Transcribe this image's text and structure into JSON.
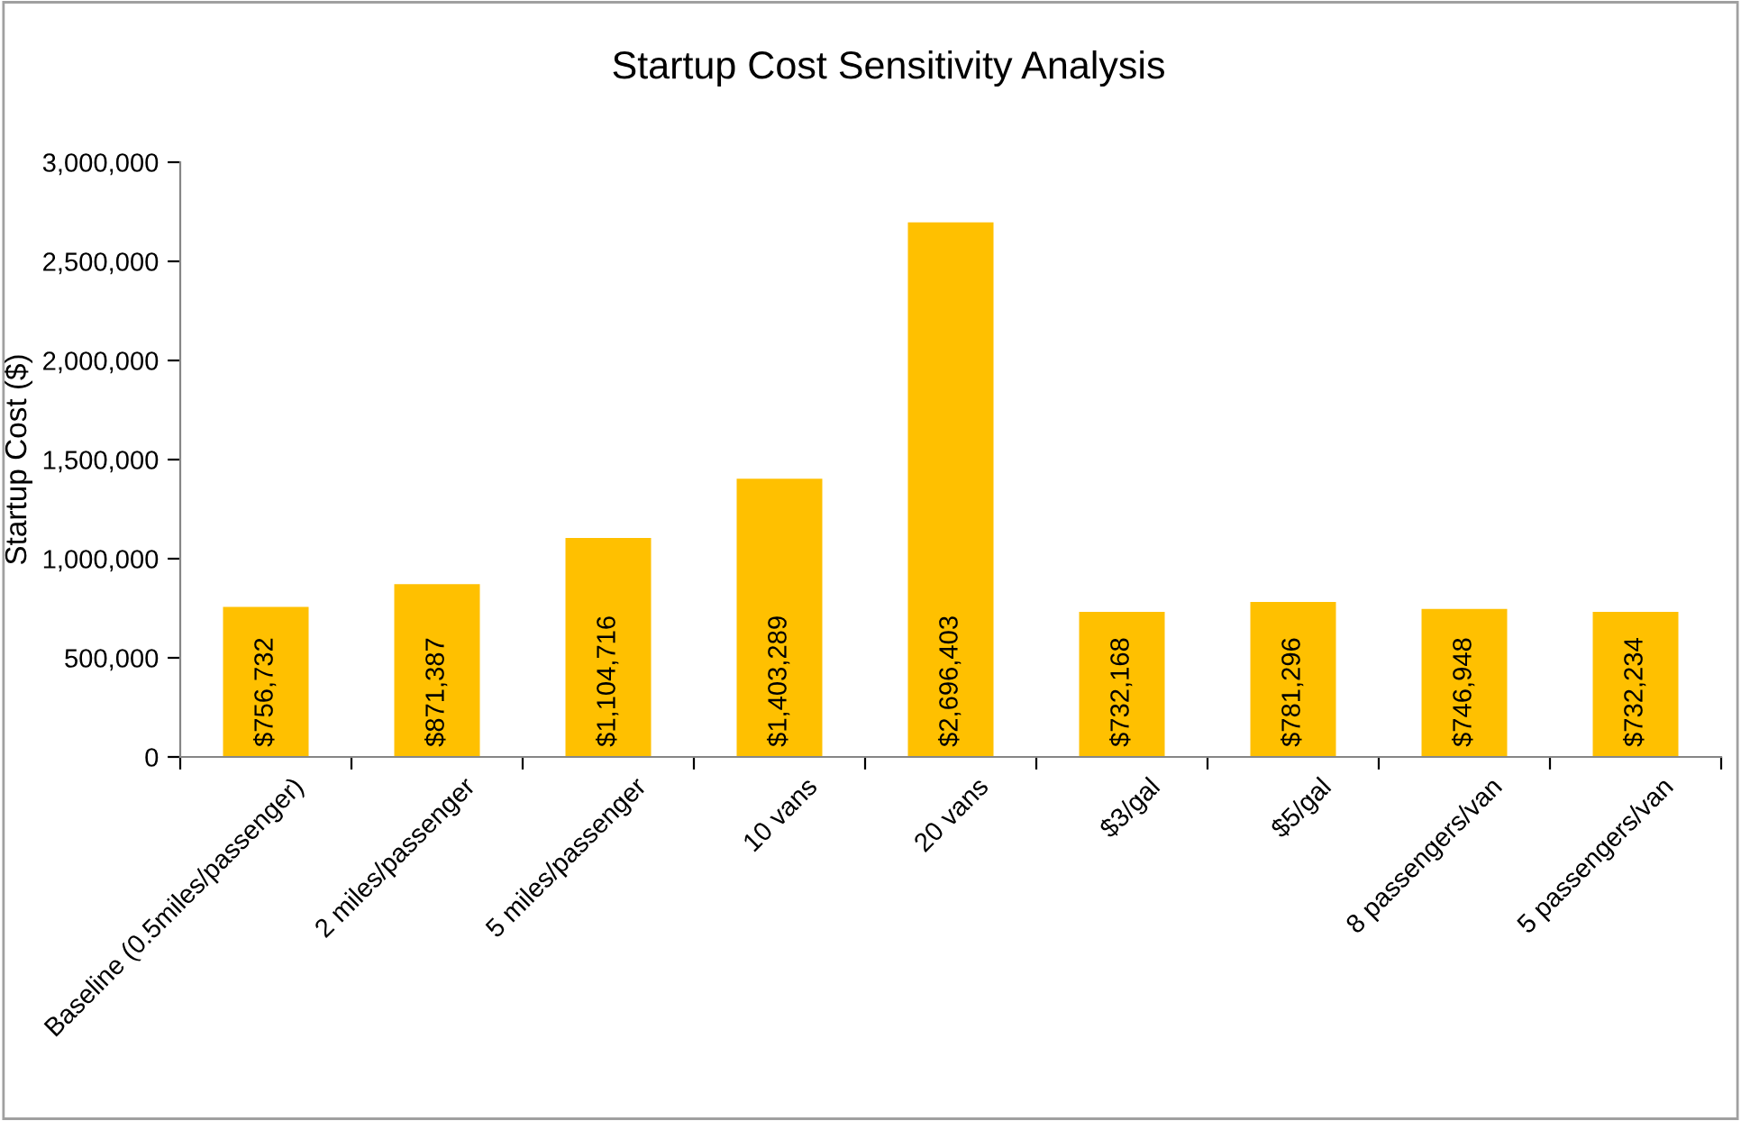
{
  "chart_data": {
    "type": "bar",
    "title": "Startup Cost Sensitivity Analysis",
    "ylabel": "Startup Cost ($)",
    "categories": [
      "Baseline (0.5miles/passenger)",
      "2 miles/passenger",
      "5 miles/passenger",
      "10 vans",
      "20 vans",
      "$3/gal",
      "$5/gal",
      "8 passengers/van",
      "5 passengers/van"
    ],
    "values": [
      756732,
      871387,
      1104716,
      1403289,
      2696403,
      732168,
      781296,
      746948,
      732234
    ],
    "value_labels": [
      "$756,732",
      "$871,387",
      "$1,104,716",
      "$1,403,289",
      "$2,696,403",
      "$732,168",
      "$781,296",
      "$746,948",
      "$732,234"
    ],
    "color": "#ffc000",
    "ylim": [
      0,
      3000000
    ],
    "yticks": [
      0,
      {
        "value": 500000,
        "label": "500,000"
      },
      {
        "value": 1000000,
        "label": "1,000,000"
      },
      {
        "value": 1500000,
        "label": "1,500,000"
      },
      {
        "value": 2000000,
        "label": "2,000,000"
      },
      {
        "value": 2500000,
        "label": "2,500,000"
      },
      {
        "value": 3000000,
        "label": "3,000,000"
      }
    ],
    "grid": false,
    "legend": false
  }
}
